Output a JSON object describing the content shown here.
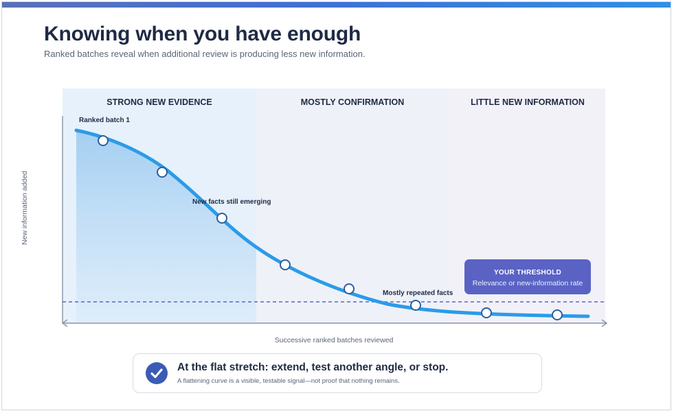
{
  "title": "Knowing when you have enough",
  "subtitle": "Ranked batches reveal when additional review is producing less new information.",
  "zones": [
    {
      "label": "STRONG NEW EVIDENCE",
      "color": "#e6f1fb"
    },
    {
      "label": "MOSTLY CONFIRMATION",
      "color": "#eef1f8"
    },
    {
      "label": "LITTLE NEW INFORMATION",
      "color": "#f2f1f8"
    }
  ],
  "annotations": {
    "batch1": "Ranked batch 1",
    "emerging": "New facts still emerging",
    "repeated": "Mostly repeated facts"
  },
  "threshold": {
    "title": "YOUR THRESHOLD",
    "subtitle": "Relevance or new-information rate",
    "color": "#5a63c4"
  },
  "axes": {
    "y_label": "New information added",
    "x_label": "Successive ranked batches reviewed"
  },
  "curve_color": "#2b9be8",
  "callout": {
    "title": "At the flat stretch: extend, test another angle, or stop.",
    "subtitle": "A flattening curve is a visible, testable signal—not proof that nothing remains.",
    "icon": "check-circle-icon",
    "icon_color": "#3b5bb5"
  }
}
